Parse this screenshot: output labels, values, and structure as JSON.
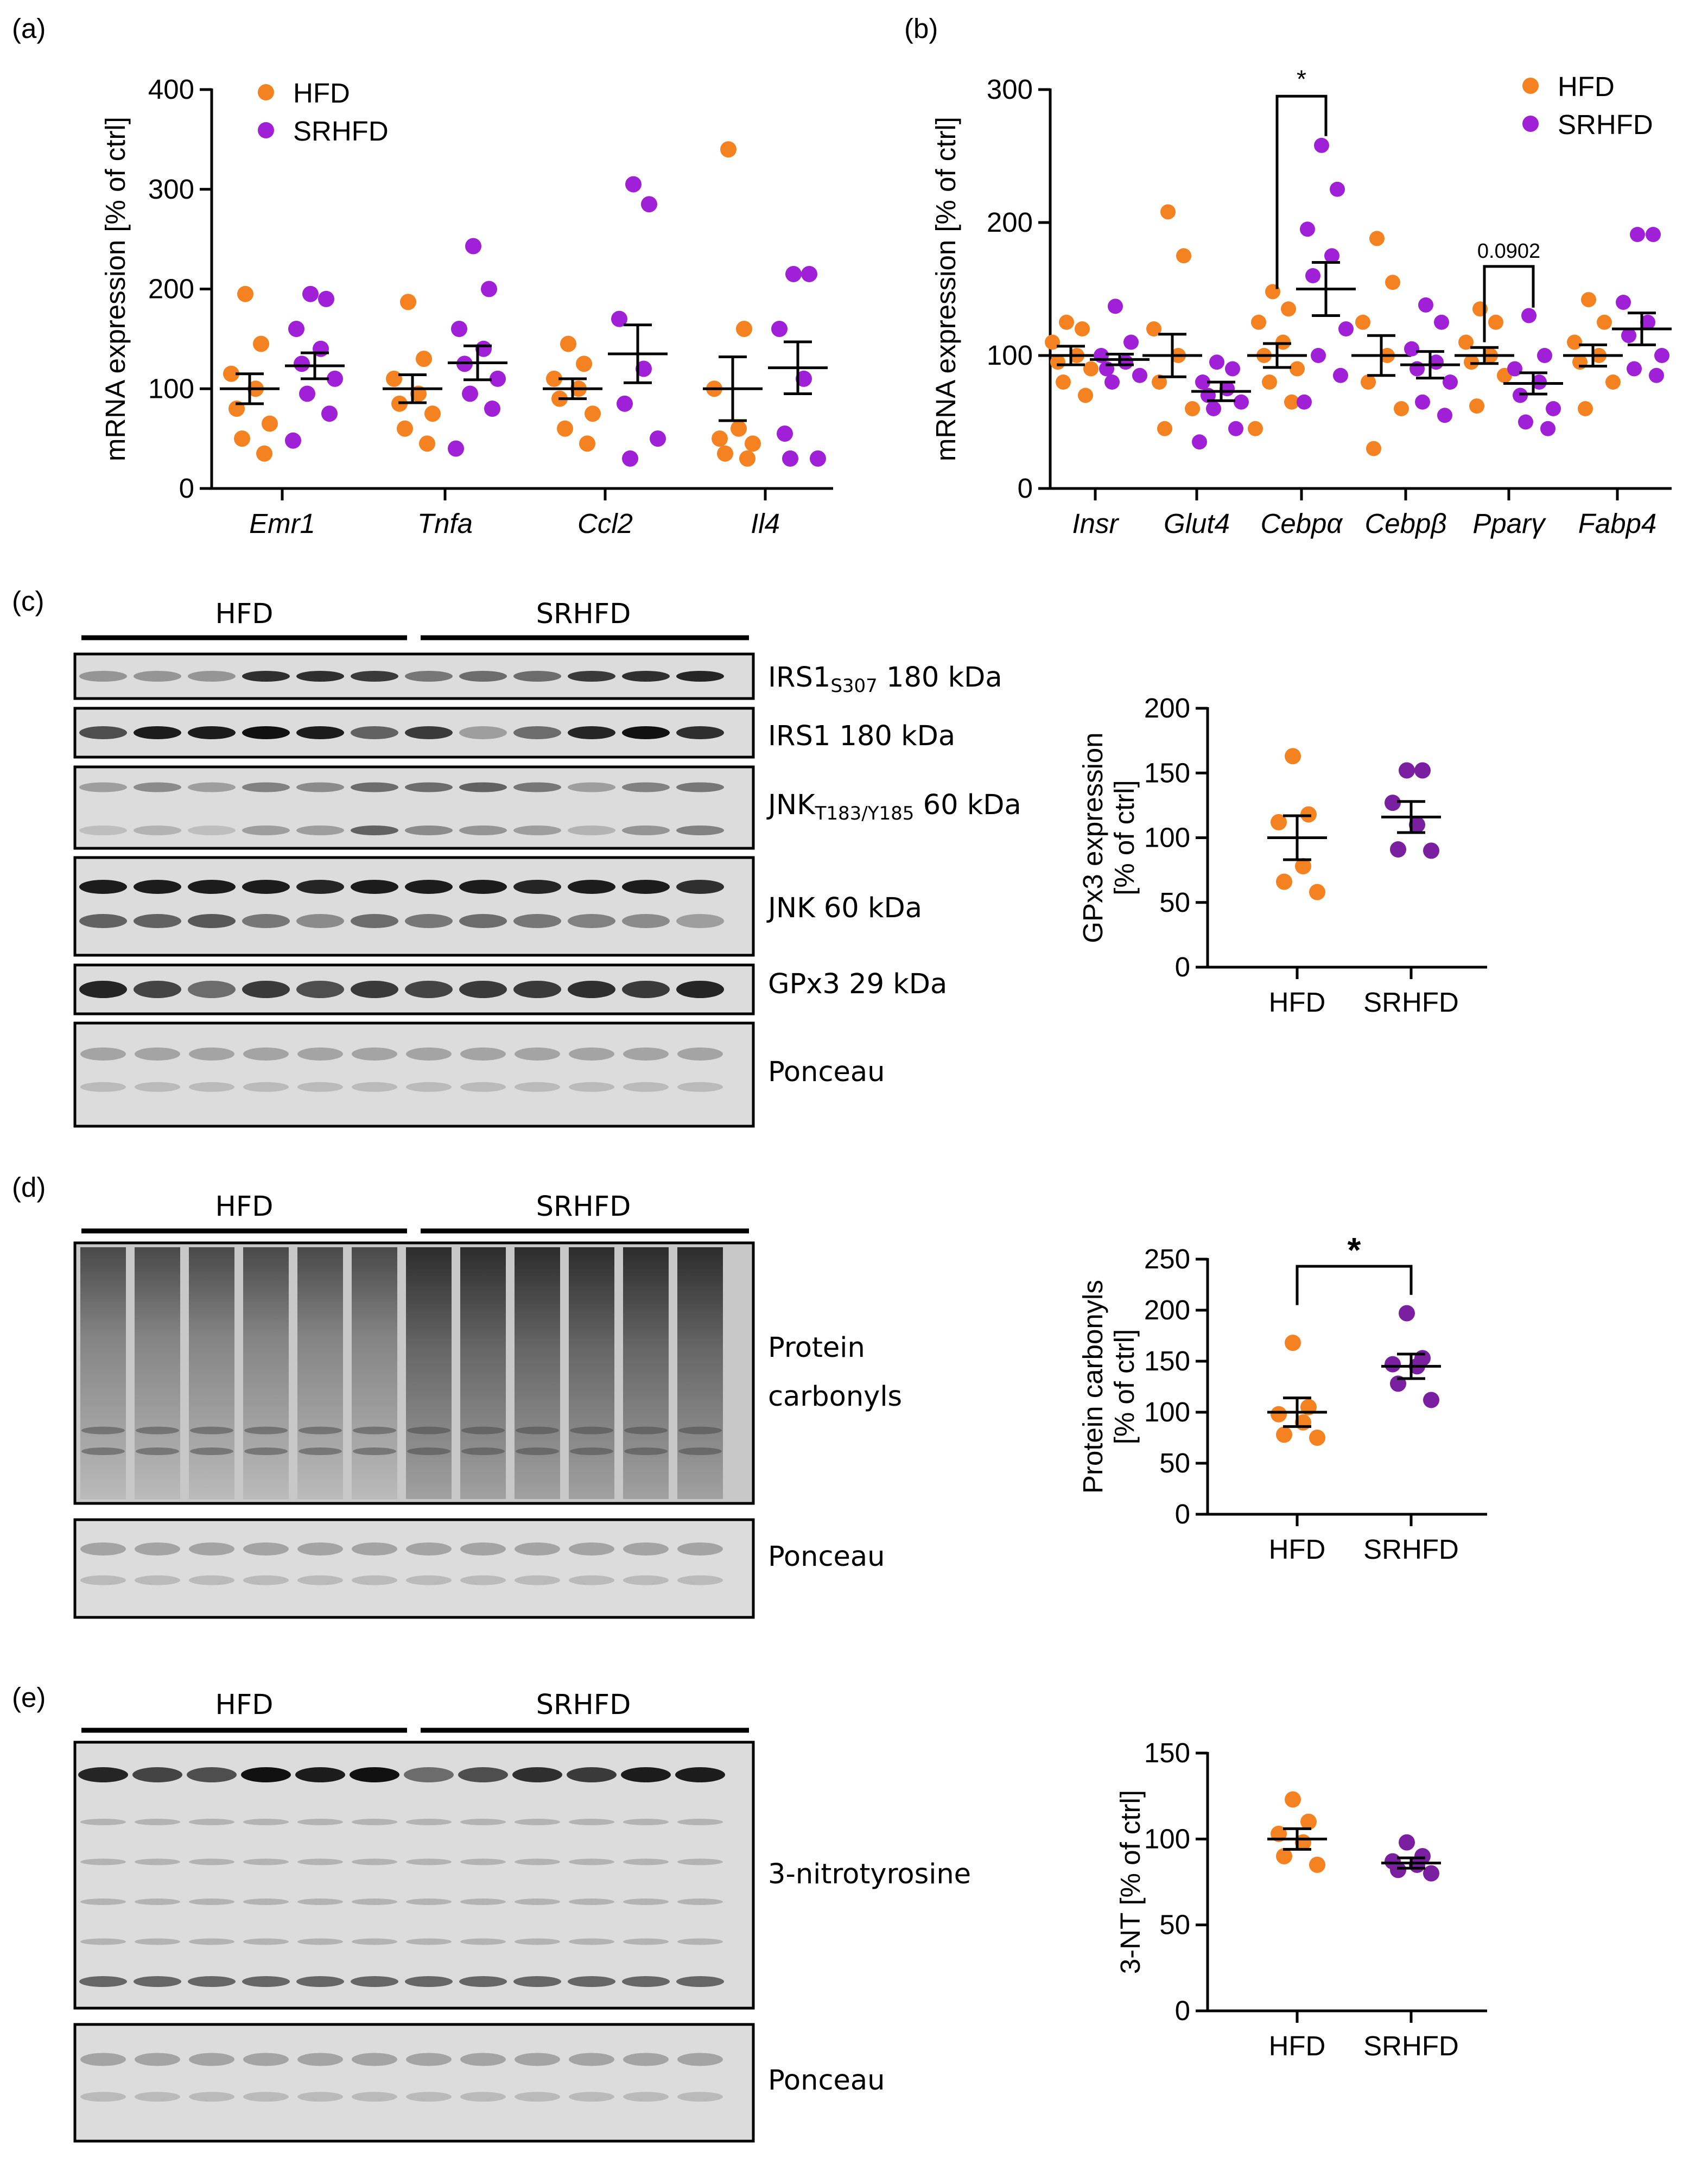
{
  "colors": {
    "hfd": "#f58220",
    "srhfd": "#a020d8",
    "srhfd_dark": "#7a1fa0"
  },
  "panel_labels": {
    "a": "(a)",
    "b": "(b)",
    "c": "(c)",
    "d": "(d)",
    "e": "(e)"
  },
  "chart_data": [
    {
      "id": "a",
      "type": "scatter",
      "ylabel": "mRNA expression [% of ctrl]",
      "ylim": [
        0,
        400
      ],
      "yticks": [
        0,
        100,
        200,
        300,
        400
      ],
      "categories": [
        "Emr1",
        "Tnfa",
        "Ccl2",
        "Il4"
      ],
      "legend": [
        "HFD",
        "SRHFD"
      ],
      "series": [
        {
          "name": "HFD",
          "mean": [
            100,
            100,
            100,
            100
          ],
          "sem": [
            15,
            14,
            10,
            32
          ],
          "points": [
            [
              195,
              145,
              115,
              100,
              80,
              65,
              50,
              35
            ],
            [
              187,
              130,
              110,
              95,
              85,
              75,
              60,
              45
            ],
            [
              145,
              125,
              110,
              100,
              90,
              75,
              60,
              45
            ],
            [
              340,
              160,
              100,
              60,
              50,
              45,
              35,
              30
            ]
          ]
        },
        {
          "name": "SRHFD",
          "mean": [
            123,
            126,
            135,
            121
          ],
          "sem": [
            13,
            17,
            29,
            26
          ],
          "points": [
            [
              195,
              190,
              160,
              140,
              125,
              110,
              95,
              75,
              48
            ],
            [
              243,
              200,
              160,
              140,
              125,
              110,
              95,
              80,
              40
            ],
            [
              305,
              285,
              170,
              120,
              85,
              50,
              30
            ],
            [
              215,
              215,
              160,
              110,
              55,
              30,
              30
            ]
          ]
        }
      ]
    },
    {
      "id": "b",
      "type": "scatter",
      "ylabel": "mRNA expression [% of ctrl]",
      "ylim": [
        0,
        300
      ],
      "yticks": [
        0,
        100,
        200,
        300
      ],
      "categories": [
        "Insr",
        "Glut4",
        "Cebpα",
        "Cebpβ",
        "Pparγ",
        "Fabp4"
      ],
      "legend": [
        "HFD",
        "SRHFD"
      ],
      "annotations": [
        {
          "between": "Cebpα",
          "text": "*"
        },
        {
          "between": "Pparγ",
          "text": "0.0902"
        }
      ],
      "series": [
        {
          "name": "HFD",
          "mean": [
            100,
            100,
            100,
            100,
            100,
            100
          ],
          "sem": [
            7,
            16,
            9,
            15,
            6,
            8
          ],
          "points": [
            [
              125,
              120,
              110,
              100,
              95,
              90,
              80,
              70
            ],
            [
              208,
              175,
              120,
              100,
              80,
              60,
              45
            ],
            [
              148,
              135,
              125,
              110,
              100,
              90,
              80,
              65,
              45
            ],
            [
              188,
              155,
              125,
              100,
              80,
              60,
              30
            ],
            [
              135,
              125,
              110,
              100,
              95,
              85,
              62
            ],
            [
              142,
              125,
              110,
              100,
              95,
              80,
              60
            ]
          ]
        },
        {
          "name": "SRHFD",
          "mean": [
            97,
            73,
            150,
            93,
            79,
            120
          ],
          "sem": [
            4,
            7,
            20,
            10,
            8,
            12
          ],
          "points": [
            [
              137,
              110,
              100,
              95,
              90,
              85,
              80
            ],
            [
              95,
              90,
              80,
              75,
              70,
              65,
              60,
              45,
              35
            ],
            [
              258,
              225,
              195,
              175,
              160,
              120,
              100,
              85,
              65
            ],
            [
              138,
              125,
              105,
              95,
              90,
              80,
              65,
              55
            ],
            [
              130,
              100,
              90,
              80,
              70,
              60,
              50,
              45
            ],
            [
              191,
              191,
              140,
              125,
              115,
              100,
              90,
              85
            ]
          ]
        }
      ]
    },
    {
      "id": "c",
      "type": "scatter",
      "ylabel": "GPx3 expression\n[% of ctrl]",
      "ylim": [
        0,
        200
      ],
      "yticks": [
        0,
        50,
        100,
        150,
        200
      ],
      "categories": [
        "HFD",
        "SRHFD"
      ],
      "series": [
        {
          "name": "HFD",
          "mean": 100,
          "sem": 17,
          "points": [
            163,
            118,
            112,
            78,
            66,
            58
          ]
        },
        {
          "name": "SRHFD",
          "mean": 116,
          "sem": 12,
          "points": [
            152,
            152,
            127,
            110,
            91,
            90
          ]
        }
      ]
    },
    {
      "id": "d",
      "type": "scatter",
      "ylabel": "Protein carbonyls\n[% of ctrl]",
      "ylim": [
        0,
        250
      ],
      "yticks": [
        0,
        50,
        100,
        150,
        200,
        250
      ],
      "categories": [
        "HFD",
        "SRHFD"
      ],
      "annotations": [
        {
          "between": "HFD-SRHFD",
          "text": "*"
        }
      ],
      "series": [
        {
          "name": "HFD",
          "mean": 100,
          "sem": 14,
          "points": [
            168,
            105,
            98,
            90,
            78,
            75
          ]
        },
        {
          "name": "SRHFD",
          "mean": 145,
          "sem": 12,
          "points": [
            197,
            153,
            147,
            145,
            128,
            112
          ]
        }
      ]
    },
    {
      "id": "e",
      "type": "scatter",
      "ylabel": "3-NT [% of ctrl]",
      "ylim": [
        0,
        150
      ],
      "yticks": [
        0,
        50,
        100,
        150
      ],
      "categories": [
        "HFD",
        "SRHFD"
      ],
      "series": [
        {
          "name": "HFD",
          "mean": 100,
          "sem": 6,
          "points": [
            123,
            110,
            103,
            98,
            90,
            85
          ]
        },
        {
          "name": "SRHFD",
          "mean": 86,
          "sem": 3,
          "points": [
            98,
            90,
            87,
            85,
            82,
            80
          ]
        }
      ]
    }
  ],
  "blots": {
    "c": {
      "groups": [
        "HFD",
        "SRHFD"
      ],
      "labels": [
        "IRS1",
        "S307",
        " 180 kDa",
        "IRS1 180 kDa",
        "JNK",
        "T183/Y185",
        " 60 kDa",
        "JNK 60 kDa",
        "GPx3 29 kDa",
        "Ponceau"
      ]
    },
    "d": {
      "groups": [
        "HFD",
        "SRHFD"
      ],
      "labels": [
        "Protein",
        "carbonyls",
        "Ponceau"
      ]
    },
    "e": {
      "groups": [
        "HFD",
        "SRHFD"
      ],
      "labels": [
        "3-nitrotyrosine",
        "Ponceau"
      ]
    }
  }
}
